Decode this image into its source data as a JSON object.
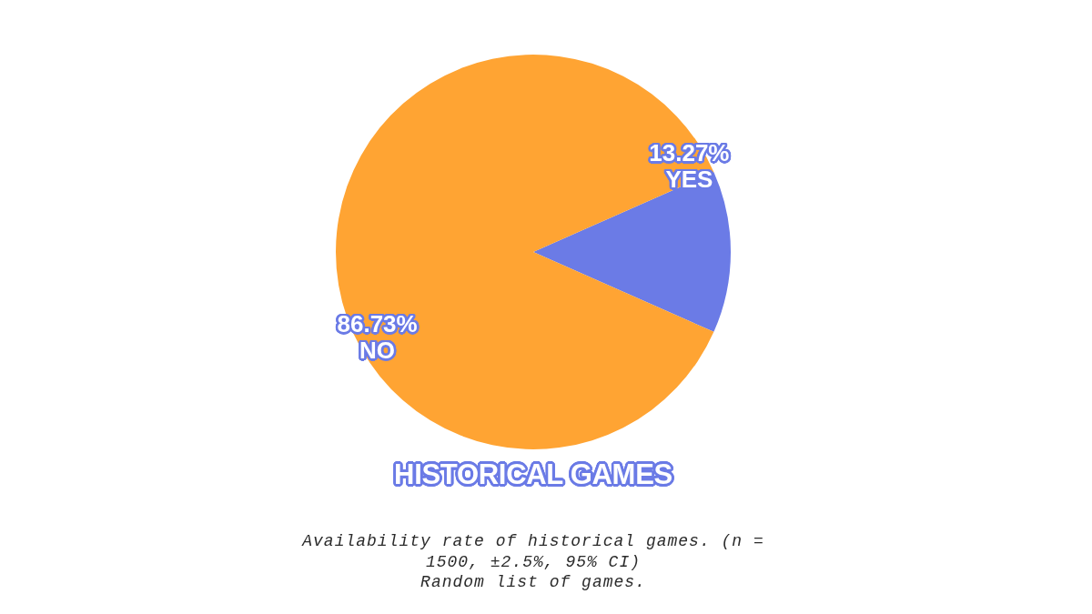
{
  "chart_data": {
    "type": "pie",
    "title": "HISTORICAL GAMES",
    "categories": [
      "YES",
      "NO"
    ],
    "values": [
      13.27,
      86.73
    ],
    "colors": [
      "#6b7be6",
      "#ffa433"
    ],
    "value_labels": [
      "13.27%",
      "86.73%"
    ],
    "annotations": [
      "Availability rate of historical games. (n = 1500, ±2.5%, 95% CI)",
      "Random list of games."
    ]
  }
}
